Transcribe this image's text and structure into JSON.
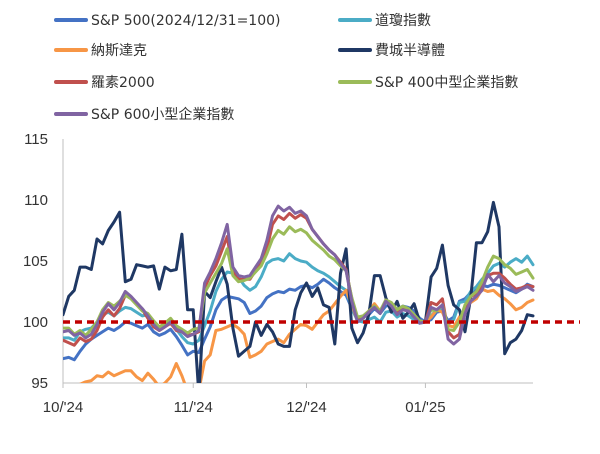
{
  "chart_data": {
    "type": "line",
    "title": "",
    "xlabel": "",
    "ylabel": "",
    "ylim": [
      95,
      115
    ],
    "yticks": [
      95,
      100,
      105,
      110,
      115
    ],
    "x_tick_labels": [
      "10/'24",
      "11/'24",
      "12/'24",
      "01/'25"
    ],
    "x_tick_index": [
      0,
      23,
      43,
      64
    ],
    "n_points": 84,
    "grid": false,
    "legend_position": "top",
    "reference_line": {
      "value": 100,
      "color": "#c00000",
      "style": "dashed"
    },
    "series": [
      {
        "name": "S&P 500(2024/12/31=100)",
        "color": "#4472c4",
        "values": [
          97.0,
          97.1,
          96.9,
          97.6,
          98.2,
          98.6,
          98.9,
          99.2,
          99.5,
          99.3,
          99.6,
          100.0,
          99.9,
          99.7,
          99.5,
          99.8,
          99.2,
          98.9,
          99.1,
          99.4,
          98.8,
          98.1,
          97.3,
          97.6,
          97.5,
          98.6,
          99.6,
          101.0,
          101.8,
          102.1,
          102.0,
          101.9,
          101.6,
          100.7,
          100.9,
          101.3,
          102.0,
          102.3,
          102.5,
          102.4,
          102.7,
          102.6,
          102.9,
          103.0,
          102.8,
          103.1,
          103.5,
          103.2,
          102.8,
          102.5,
          102.2,
          101.1,
          100.2,
          100.4,
          100.6,
          101.1,
          100.7,
          101.3,
          101.4,
          101.0,
          101.3,
          101.2,
          100.9,
          100.3,
          100.0,
          100.2,
          100.8,
          100.9,
          100.1,
          100.4,
          101.7,
          101.9,
          102.4,
          102.6,
          103.0,
          102.9,
          103.1,
          103.0,
          102.8,
          102.6,
          102.4,
          102.7,
          103.1,
          102.9
        ]
      },
      {
        "name": "道瓊指數",
        "color": "#4bacc6",
        "values": [
          98.7,
          98.7,
          98.5,
          99.2,
          99.4,
          99.5,
          100.0,
          100.6,
          100.8,
          100.5,
          100.9,
          101.2,
          101.1,
          100.8,
          100.5,
          100.6,
          99.9,
          99.6,
          99.8,
          100.1,
          99.4,
          98.8,
          98.3,
          98.2,
          98.5,
          99.7,
          100.9,
          102.5,
          103.5,
          104.1,
          104.0,
          103.7,
          103.0,
          102.6,
          102.9,
          103.7,
          104.8,
          105.1,
          105.2,
          105.0,
          105.6,
          105.2,
          105.0,
          104.9,
          104.5,
          104.2,
          104.0,
          103.7,
          103.3,
          102.9,
          102.6,
          101.1,
          100.1,
          100.0,
          100.2,
          100.4,
          100.0,
          100.8,
          100.9,
          100.4,
          100.7,
          100.5,
          100.2,
          99.9,
          100.0,
          100.5,
          101.0,
          101.0,
          99.8,
          100.2,
          101.6,
          101.7,
          102.5,
          102.9,
          103.5,
          104.0,
          104.6,
          104.8,
          104.5,
          104.9,
          105.2,
          104.9,
          105.4,
          104.7
        ]
      },
      {
        "name": "納斯達克",
        "color": "#f79646",
        "values": [
          94.5,
          94.8,
          94.6,
          94.9,
          95.1,
          95.2,
          95.6,
          95.5,
          95.9,
          95.6,
          95.8,
          96.0,
          96.0,
          95.5,
          95.2,
          95.8,
          95.3,
          94.7,
          95.0,
          95.5,
          96.6,
          95.6,
          94.3,
          94.0,
          94.4,
          96.8,
          97.3,
          99.3,
          99.4,
          99.6,
          99.8,
          99.5,
          99.0,
          97.1,
          97.3,
          97.6,
          98.2,
          98.4,
          98.6,
          98.3,
          99.0,
          99.4,
          99.8,
          99.7,
          99.4,
          100.0,
          100.6,
          100.9,
          101.5,
          102.1,
          102.6,
          101.4,
          100.1,
          100.4,
          100.9,
          101.5,
          100.9,
          101.7,
          101.4,
          100.9,
          101.2,
          101.0,
          100.6,
          100.0,
          100.0,
          100.4,
          101.0,
          100.8,
          99.7,
          99.6,
          100.4,
          101.1,
          101.6,
          101.9,
          102.7,
          102.5,
          102.6,
          102.2,
          101.9,
          101.5,
          101.0,
          101.2,
          101.6,
          101.8
        ]
      },
      {
        "name": "費城半導體",
        "color": "#1f3864",
        "values": [
          100.6,
          102.1,
          102.6,
          104.5,
          104.5,
          104.3,
          106.8,
          106.4,
          107.5,
          108.2,
          109.0,
          103.3,
          103.5,
          104.7,
          104.6,
          104.5,
          104.6,
          102.7,
          104.5,
          104.2,
          104.3,
          107.2,
          101.0,
          101.0,
          94.0,
          102.5,
          102.0,
          103.3,
          104.5,
          103.1,
          99.5,
          97.2,
          97.6,
          98.0,
          100.0,
          98.9,
          99.8,
          99.2,
          98.2,
          98.0,
          98.0,
          101.0,
          102.4,
          103.2,
          102.1,
          102.8,
          101.4,
          101.2,
          98.2,
          104.0,
          106.0,
          99.5,
          98.3,
          99.1,
          100.6,
          103.8,
          103.8,
          102.0,
          100.8,
          101.7,
          100.3,
          100.8,
          101.5,
          100.0,
          100.0,
          103.7,
          104.4,
          106.3,
          103.0,
          101.4,
          101.0,
          99.2,
          102.0,
          106.5,
          106.5,
          107.4,
          109.8,
          107.8,
          97.4,
          98.3,
          98.6,
          99.3,
          100.6,
          100.5
        ]
      },
      {
        "name": "羅素2000",
        "color": "#c0504d",
        "values": [
          98.5,
          98.3,
          98.1,
          98.7,
          98.4,
          98.6,
          99.3,
          100.4,
          101.0,
          100.5,
          101.1,
          102.2,
          102.0,
          101.5,
          101.0,
          100.3,
          99.6,
          99.3,
          99.6,
          99.9,
          99.3,
          99.2,
          98.9,
          99.0,
          99.2,
          102.8,
          103.8,
          104.6,
          105.8,
          107.0,
          104.1,
          103.5,
          103.5,
          103.5,
          104.2,
          104.8,
          106.0,
          108.0,
          108.7,
          108.4,
          108.9,
          108.5,
          108.8,
          108.5,
          107.6,
          107.0,
          106.4,
          105.9,
          105.5,
          104.9,
          104.3,
          101.9,
          100.1,
          100.3,
          100.9,
          101.3,
          100.8,
          101.8,
          101.5,
          100.8,
          101.2,
          101.0,
          100.5,
          100.0,
          100.0,
          101.6,
          101.4,
          101.9,
          99.2,
          98.7,
          99.0,
          101.1,
          102.1,
          102.3,
          102.8,
          103.8,
          104.0,
          104.0,
          103.6,
          103.1,
          102.7,
          102.8,
          103.0,
          102.9
        ]
      },
      {
        "name": "S&P 400中型企業指數",
        "color": "#9bbb59",
        "values": [
          99.5,
          99.5,
          99.0,
          99.3,
          98.9,
          99.4,
          100.0,
          101.0,
          101.6,
          101.3,
          101.7,
          102.2,
          101.9,
          101.4,
          100.9,
          100.7,
          100.1,
          99.6,
          99.9,
          100.3,
          99.7,
          99.4,
          99.1,
          99.4,
          99.5,
          102.4,
          103.2,
          104.0,
          104.8,
          106.0,
          103.8,
          103.3,
          103.4,
          103.6,
          104.1,
          104.6,
          105.6,
          106.8,
          107.5,
          107.2,
          107.8,
          107.4,
          107.6,
          107.3,
          106.7,
          106.3,
          105.9,
          105.4,
          105.1,
          104.6,
          104.2,
          102.0,
          100.4,
          100.5,
          100.9,
          101.3,
          100.9,
          101.8,
          101.6,
          101.0,
          101.3,
          101.1,
          100.6,
          100.1,
          100.0,
          101.0,
          100.9,
          101.4,
          99.4,
          99.3,
          100.0,
          101.4,
          102.1,
          102.5,
          103.3,
          104.5,
          105.4,
          105.2,
          104.7,
          104.4,
          103.9,
          104.1,
          104.3,
          103.6
        ]
      },
      {
        "name": "S&P 600小型企業指數",
        "color": "#8064a2",
        "values": [
          99.2,
          99.3,
          98.9,
          99.1,
          98.7,
          99.0,
          99.8,
          100.8,
          101.5,
          101.0,
          101.6,
          102.5,
          102.1,
          101.6,
          101.1,
          100.5,
          99.8,
          99.3,
          99.6,
          100.0,
          99.4,
          99.2,
          98.8,
          99.0,
          99.3,
          103.2,
          104.1,
          105.2,
          106.5,
          108.0,
          104.5,
          103.8,
          103.7,
          103.8,
          104.5,
          105.2,
          106.7,
          108.7,
          109.5,
          109.1,
          109.4,
          108.9,
          109.1,
          108.7,
          107.6,
          107.0,
          106.4,
          105.9,
          105.5,
          104.8,
          104.2,
          101.7,
          100.0,
          100.3,
          100.8,
          101.2,
          100.7,
          101.7,
          101.3,
          100.6,
          101.0,
          100.9,
          100.4,
          99.9,
          100.0,
          101.2,
          101.0,
          101.4,
          98.6,
          98.2,
          98.6,
          100.7,
          101.7,
          102.1,
          102.6,
          103.9,
          103.3,
          103.8,
          103.2,
          102.9,
          102.5,
          102.7,
          102.9,
          102.6
        ]
      }
    ]
  }
}
